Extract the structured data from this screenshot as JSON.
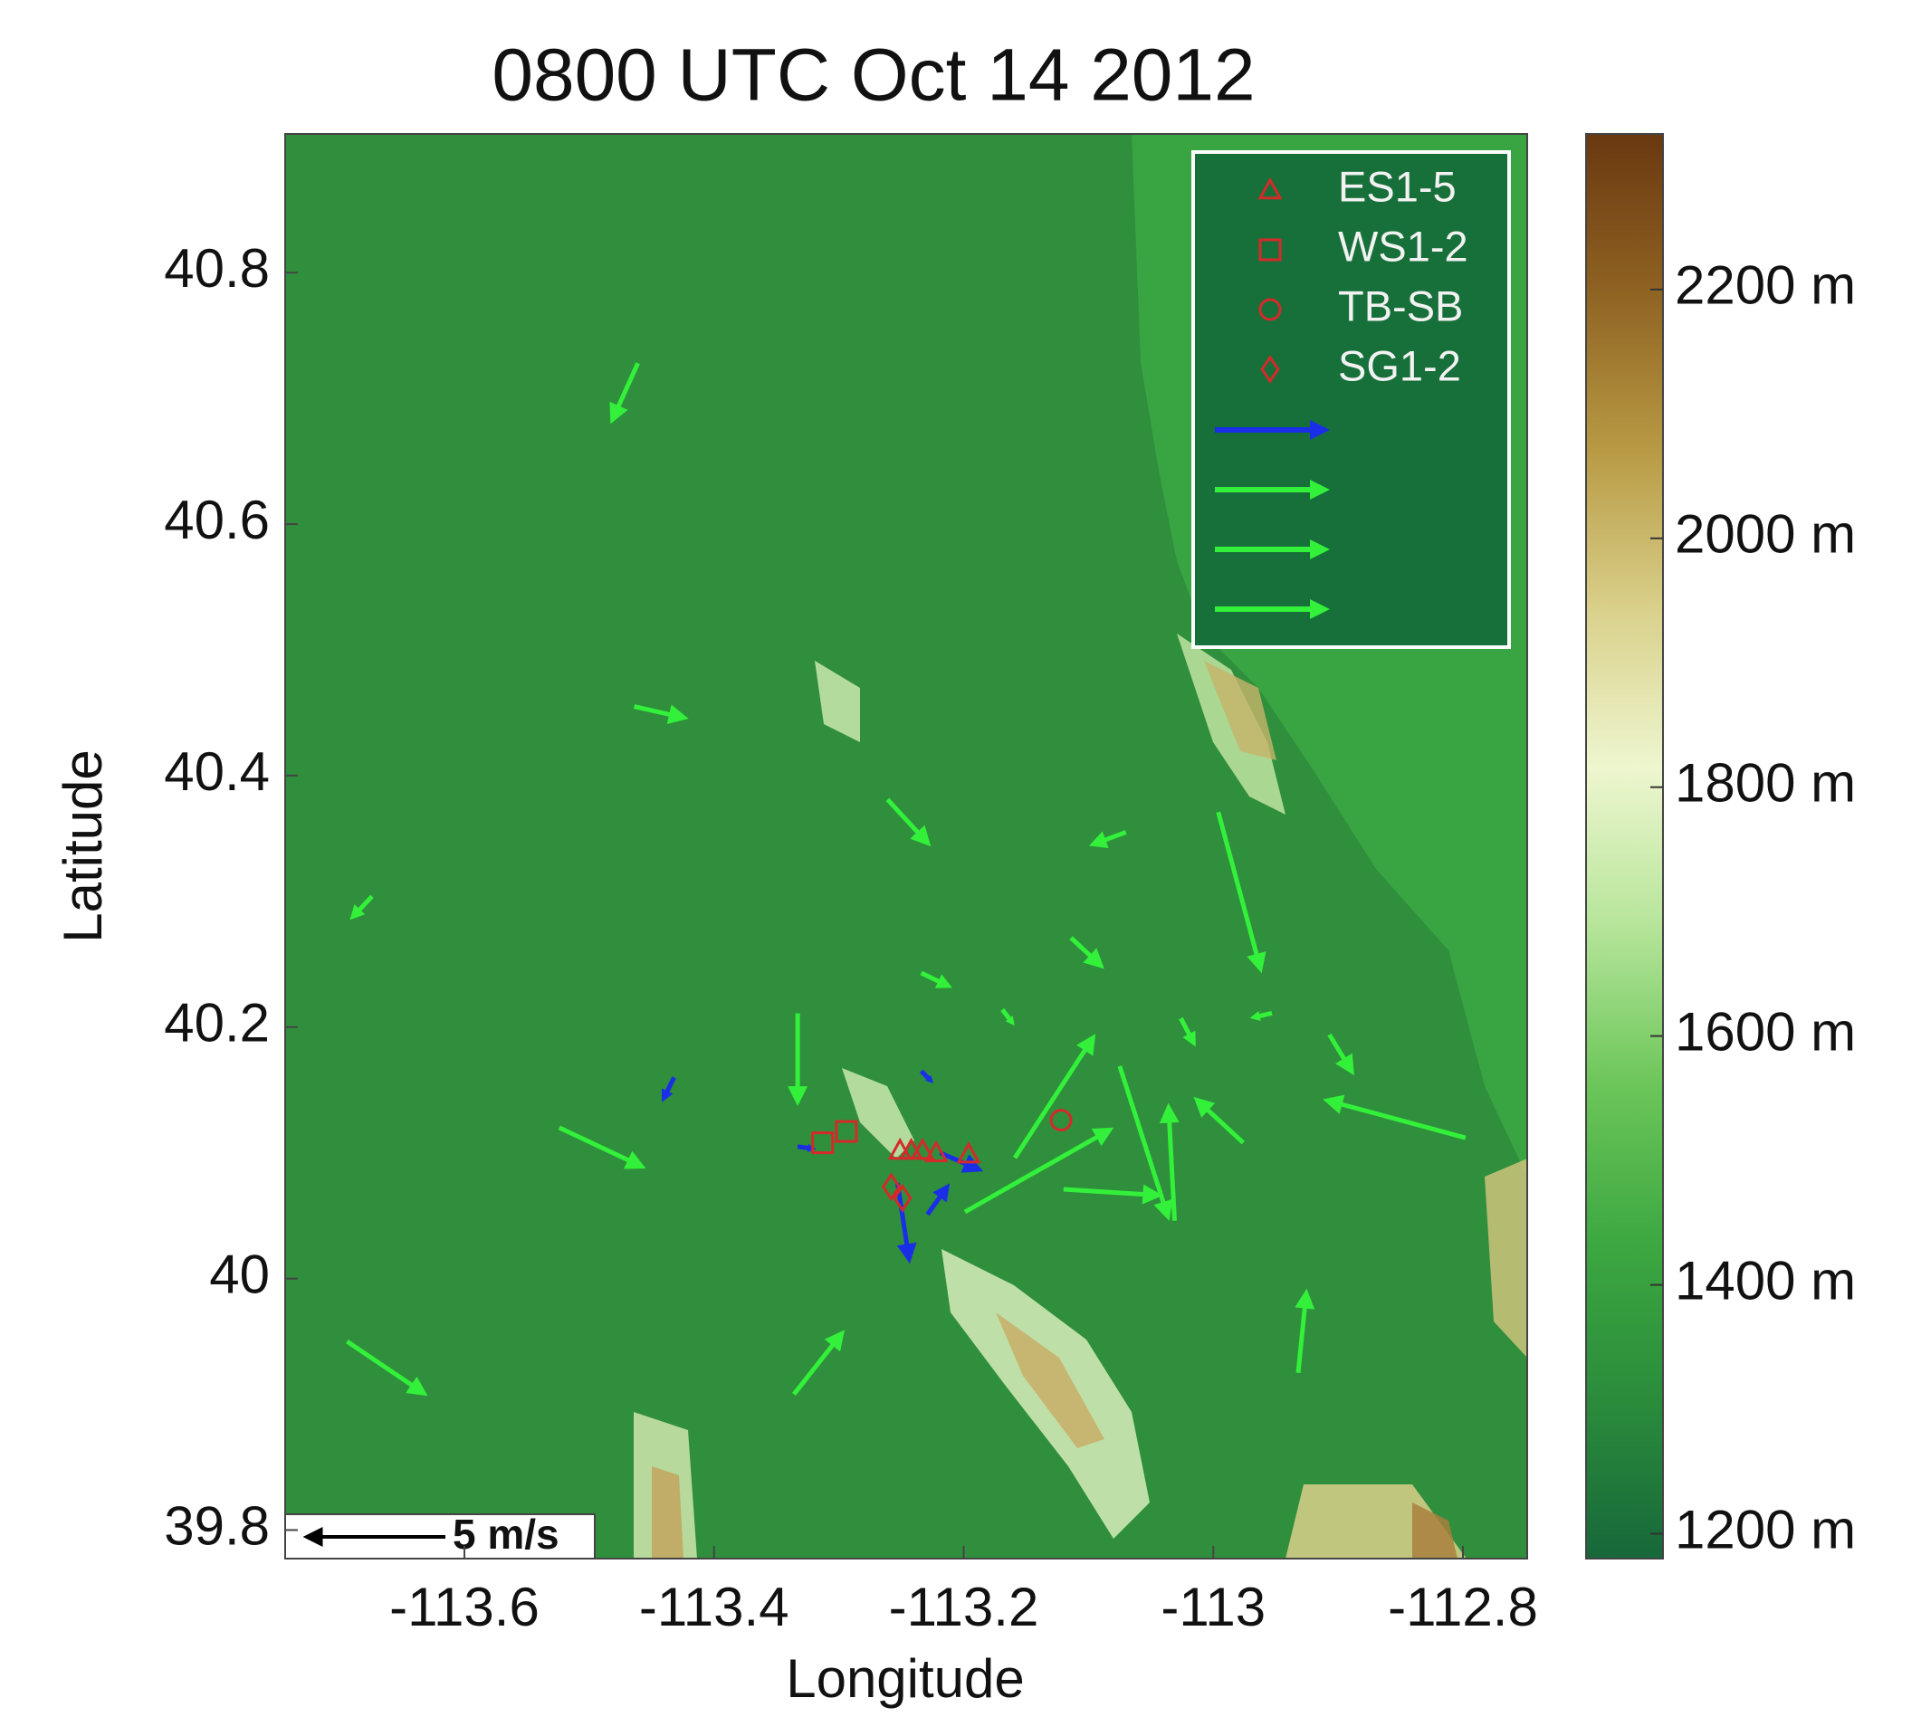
{
  "chart_data": {
    "type": "quiver",
    "title": "0800 UTC Oct 14 2012",
    "xlabel": "Longitude",
    "ylabel": "Latitude",
    "xlim": [
      -113.7436,
      -112.7485
    ],
    "ylim": [
      39.7773,
      40.9103
    ],
    "xticks": [
      -113.6,
      -113.4,
      -113.2,
      -113,
      -112.8
    ],
    "yticks": [
      39.8,
      40,
      40.2,
      40.4,
      40.6,
      40.8
    ],
    "legend": "upper right",
    "colorbar": {
      "clim": [
        1180,
        2325
      ],
      "ticks": [
        {
          "value": 1200,
          "label": "1200 m"
        },
        {
          "value": 1400,
          "label": "1400 m"
        },
        {
          "value": 1600,
          "label": "1600 m"
        },
        {
          "value": 1800,
          "label": "1800 m"
        },
        {
          "value": 2000,
          "label": "2000 m"
        },
        {
          "value": 2200,
          "label": "2200 m"
        }
      ],
      "colormap": [
        "#17683a",
        "#2a8c3b",
        "#3da841",
        "#6cc65a",
        "#b6e59a",
        "#eef6cf",
        "#d9d08a",
        "#b89a44",
        "#8f6322",
        "#6a3810"
      ]
    },
    "stations": [
      {
        "name": "ES1-5",
        "marker": "triangle",
        "color": "#d42a2a",
        "lon": [
          -113.251,
          -113.242,
          -113.233,
          -113.222,
          -113.196
        ],
        "lat": [
          40.102,
          40.102,
          40.102,
          40.1,
          40.099
        ]
      },
      {
        "name": "WS1-2",
        "marker": "square",
        "color": "#d42a2a",
        "lon": [
          -113.313,
          -113.294
        ],
        "lat": [
          40.108,
          40.117
        ]
      },
      {
        "name": "TB-SB",
        "marker": "circle",
        "color": "#d42a2a",
        "lon": [
          -113.122
        ],
        "lat": [
          40.126
        ]
      },
      {
        "name": "SG1-2",
        "marker": "diamond",
        "color": "#d42a2a",
        "lon": [
          -113.258,
          -113.249
        ],
        "lat": [
          40.073,
          40.064
        ]
      }
    ],
    "vectors": [
      {
        "color": "#1a2ee8",
        "lon": [
          -113.432,
          -113.253,
          -113.229,
          -113.333,
          -113.219,
          -113.234
        ],
        "lat": [
          40.16,
          40.076,
          40.051,
          40.105,
          40.1,
          40.165
        ],
        "u": [
          -0.43,
          0.43,
          0.78,
          0.65,
          1.52,
          0.43
        ],
        "v": [
          -0.87,
          -2.83,
          1.09,
          -0.09,
          -0.65,
          -0.43
        ]
      },
      {
        "color": "#33f03a",
        "lon": [
          -113.461,
          -113.464,
          -113.261,
          -113.07,
          -113.674,
          -112.996,
          -113.114,
          -113.234,
          -113.333,
          -113.524,
          -112.798,
          -112.976,
          -112.907,
          -113.026,
          -112.953,
          -113.199,
          -113.159,
          -113.694,
          -113.336,
          -112.932,
          -113.031,
          -113.12,
          -113.075,
          -113.169
        ],
        "lat": [
          40.728,
          40.455,
          40.381,
          40.355,
          40.304,
          40.371,
          40.271,
          40.243,
          40.211,
          40.12,
          40.112,
          40.108,
          40.194,
          40.207,
          40.211,
          40.053,
          40.096,
          39.95,
          39.908,
          39.925,
          40.046,
          40.071,
          40.169,
          40.214
        ],
        "u": [
          -0.96,
          1.91,
          1.52,
          -1.3,
          -0.78,
          1.52,
          1.17,
          1.09,
          0,
          3.04,
          -5,
          -1.74,
          0.87,
          0.52,
          -0.78,
          5.22,
          2.83,
          2.83,
          1.78,
          0.3,
          -0.22,
          3.48,
          1.74,
          0.43
        ],
        "v": [
          -2.13,
          -0.43,
          -1.65,
          -0.48,
          -0.83,
          -5.65,
          -1.09,
          -0.52,
          -3.26,
          -1.43,
          1.35,
          1.61,
          -1.43,
          -1,
          -0.17,
          2.96,
          4.35,
          -1.91,
          2.26,
          2.96,
          4.13,
          -0.22,
          -5.43,
          -0.57
        ]
      }
    ],
    "reference": {
      "value": 5,
      "label": "5 m/s"
    }
  }
}
